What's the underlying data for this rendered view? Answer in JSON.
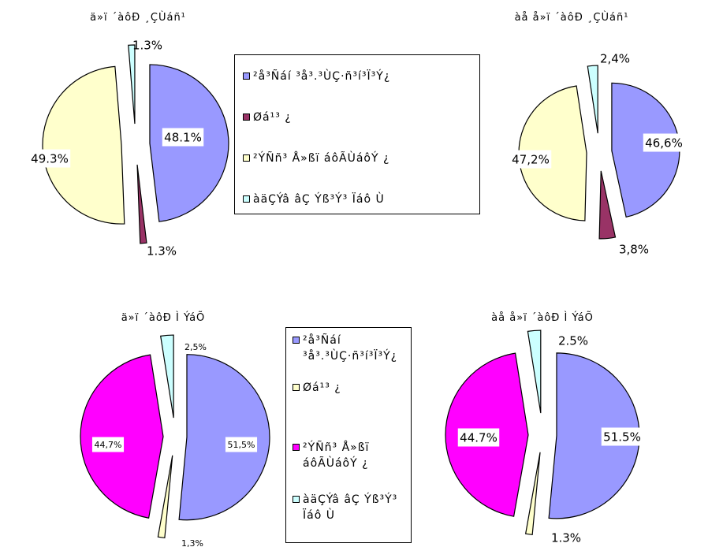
{
  "colors": {
    "periwinkle": "#9999ff",
    "maroon": "#993366",
    "light_yellow": "#ffffcc",
    "light_cyan": "#ccffff",
    "magenta": "#ff00ff"
  },
  "chart_data": [
    {
      "type": "pie",
      "title": "ä»ï  ´àôÐ           ¸ÇÙáñ¹",
      "categories": [
        "²å³Ñáí ³å³.³ÙÇ·ñ³í³Ï³Ý¿",
        "Øá¹³ ¿",
        "²ÝÑñ³ Å»ßï áôÃÙáôÝ ¿",
        "àäÇÝâ âÇ Ýß³Ý³ Ïáô Ù"
      ],
      "values": [
        48.1,
        1.3,
        49.3,
        1.3
      ],
      "data_labels": [
        "48.1%",
        "1.3%",
        "49.3%",
        "1.3%"
      ],
      "slice_colors": [
        "#9999ff",
        "#993366",
        "#ffffcc",
        "#ccffff"
      ]
    },
    {
      "type": "pie",
      "title": "àå å»ï  ´àôÐ         ¸ÇÙáñ¹",
      "categories": [
        "²å³Ñáí ³å³.³ÙÇ·ñ³í³Ï³Ý¿",
        "Øá¹³ ¿",
        "²ÝÑñ³ Å»ßï áôÃÙáôÝ ¿",
        "àäÇÝâ âÇ Ýß³Ý³ Ïáô Ù"
      ],
      "values": [
        46.6,
        3.8,
        47.2,
        2.4
      ],
      "data_labels": [
        "46,6%",
        "3,8%",
        "47,2%",
        "2,4%"
      ],
      "slice_colors": [
        "#9999ff",
        "#993366",
        "#ffffcc",
        "#ccffff"
      ]
    },
    {
      "type": "pie",
      "title": "ä»ï  ´àôÐ              Ì ÝáÕ",
      "categories": [
        "²å³Ñáí ³å³.³ÙÇ·ñ³í³Ï³Ý¿",
        "Øá¹³ ¿",
        "²ÝÑñ³ Å»ßï áôÃÙáôÝ ¿",
        "àäÇÝâ âÇ Ýß³Ý³ Ïáô Ù"
      ],
      "values": [
        51.5,
        1.3,
        44.7,
        2.5
      ],
      "data_labels": [
        "51,5%",
        "1,3%",
        "44,7%",
        "2,5%"
      ],
      "slice_colors": [
        "#9999ff",
        "#ffffcc",
        "#ff00ff",
        "#ccffff"
      ]
    },
    {
      "type": "pie",
      "title": "àå å»ï  ´àôÐ         Ì ÝáÕ",
      "categories": [
        "²å³Ñáí ³å³.³ÙÇ·ñ³í³Ï³Ý¿",
        "Øá¹³ ¿",
        "²ÝÑñ³ Å»ßï áôÃÙáôÝ ¿",
        "àäÇÝâ âÇ Ýß³Ý³ Ïáô Ù"
      ],
      "values": [
        51.5,
        1.3,
        44.7,
        2.5
      ],
      "data_labels": [
        "51.5%",
        "1.3%",
        "44.7%",
        "2.5%"
      ],
      "slice_colors": [
        "#9999ff",
        "#ffffcc",
        "#ff00ff",
        "#ccffff"
      ]
    }
  ],
  "legend_top": {
    "items": [
      {
        "label": "²å³Ñáí ³å³.³ÙÇ·ñ³í³Ï³Ý¿",
        "color": "#9999ff"
      },
      {
        "label": "Øá¹³ ¿",
        "color": "#993366"
      },
      {
        "label": "²ÝÑñ³ Å»ßï áôÃÙáôÝ ¿",
        "color": "#ffffcc"
      },
      {
        "label": "àäÇÝâ âÇ Ýß³Ý³ Ïáô Ù",
        "color": "#ccffff"
      }
    ]
  },
  "legend_bottom": {
    "items": [
      {
        "label": "²å³Ñáí ³å³.³ÙÇ·ñ³í³Ï³Ý¿",
        "color": "#9999ff"
      },
      {
        "label": "Øá¹³ ¿",
        "color": "#ffffcc"
      },
      {
        "label": "²ÝÑñ³ Å»ßï áôÃÙáôÝ ¿",
        "color": "#ff00ff"
      },
      {
        "label": "àäÇÝâ âÇ Ýß³Ý³ Ïáô Ù",
        "color": "#ccffff"
      }
    ]
  }
}
